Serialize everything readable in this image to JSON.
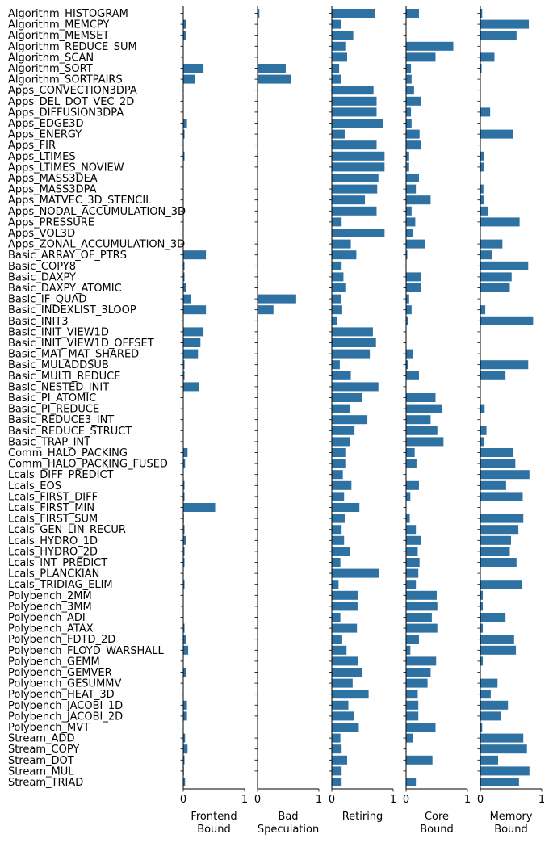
{
  "chart_data": {
    "type": "bar",
    "orientation": "horizontal",
    "categories": [
      "Algorithm_HISTOGRAM",
      "Algorithm_MEMCPY",
      "Algorithm_MEMSET",
      "Algorithm_REDUCE_SUM",
      "Algorithm_SCAN",
      "Algorithm_SORT",
      "Algorithm_SORTPAIRS",
      "Apps_CONVECTION3DPA",
      "Apps_DEL_DOT_VEC_2D",
      "Apps_DIFFUSION3DPA",
      "Apps_EDGE3D",
      "Apps_ENERGY",
      "Apps_FIR",
      "Apps_LTIMES",
      "Apps_LTIMES_NOVIEW",
      "Apps_MASS3DEA",
      "Apps_MASS3DPA",
      "Apps_MATVEC_3D_STENCIL",
      "Apps_NODAL_ACCUMULATION_3D",
      "Apps_PRESSURE",
      "Apps_VOL3D",
      "Apps_ZONAL_ACCUMULATION_3D",
      "Basic_ARRAY_OF_PTRS",
      "Basic_COPY8",
      "Basic_DAXPY",
      "Basic_DAXPY_ATOMIC",
      "Basic_IF_QUAD",
      "Basic_INDEXLIST_3LOOP",
      "Basic_INIT3",
      "Basic_INIT_VIEW1D",
      "Basic_INIT_VIEW1D_OFFSET",
      "Basic_MAT_MAT_SHARED",
      "Basic_MULADDSUB",
      "Basic_MULTI_REDUCE",
      "Basic_NESTED_INIT",
      "Basic_PI_ATOMIC",
      "Basic_PI_REDUCE",
      "Basic_REDUCE3_INT",
      "Basic_REDUCE_STRUCT",
      "Basic_TRAP_INT",
      "Comm_HALO_PACKING",
      "Comm_HALO_PACKING_FUSED",
      "Lcals_DIFF_PREDICT",
      "Lcals_EOS",
      "Lcals_FIRST_DIFF",
      "Lcals_FIRST_MIN",
      "Lcals_FIRST_SUM",
      "Lcals_GEN_LIN_RECUR",
      "Lcals_HYDRO_1D",
      "Lcals_HYDRO_2D",
      "Lcals_INT_PREDICT",
      "Lcals_PLANCKIAN",
      "Lcals_TRIDIAG_ELIM",
      "Polybench_2MM",
      "Polybench_3MM",
      "Polybench_ADI",
      "Polybench_ATAX",
      "Polybench_FDTD_2D",
      "Polybench_FLOYD_WARSHALL",
      "Polybench_GEMM",
      "Polybench_GEMVER",
      "Polybench_GESUMMV",
      "Polybench_HEAT_3D",
      "Polybench_JACOBI_1D",
      "Polybench_JACOBI_2D",
      "Polybench_MVT",
      "Stream_ADD",
      "Stream_COPY",
      "Stream_DOT",
      "Stream_MUL",
      "Stream_TRIAD"
    ],
    "xlim": [
      0,
      1
    ],
    "xticks": [
      "0",
      "1"
    ],
    "color": "#2e71a3",
    "panels": [
      {
        "label": "Frontend\nBound",
        "values": [
          0,
          0.05,
          0.05,
          0,
          0,
          0.33,
          0.19,
          0,
          0,
          0,
          0.06,
          0.02,
          0,
          0.02,
          0,
          0,
          0,
          0,
          0,
          0,
          0,
          0,
          0.37,
          0.02,
          0.02,
          0.04,
          0.13,
          0.37,
          0,
          0.33,
          0.28,
          0.24,
          0.02,
          0.02,
          0.25,
          0,
          0,
          0,
          0,
          0,
          0.07,
          0.03,
          0,
          0.02,
          0.02,
          0.52,
          0.01,
          0.02,
          0.04,
          0.02,
          0.02,
          0,
          0.02,
          0,
          0,
          0,
          0.02,
          0.04,
          0.08,
          0,
          0.05,
          0,
          0,
          0.06,
          0.06,
          0,
          0.03,
          0.07,
          0.02,
          0.01,
          0.03
        ]
      },
      {
        "label": "Bad\nSpeculation",
        "values": [
          0.03,
          0,
          0,
          0,
          0,
          0.46,
          0.55,
          0,
          0,
          0,
          0,
          0,
          0,
          0,
          0,
          0,
          0,
          0,
          0,
          0,
          0,
          0,
          0,
          0,
          0,
          0,
          0.63,
          0.26,
          0,
          0,
          0,
          0,
          0,
          0,
          0,
          0,
          0,
          0,
          0,
          0,
          0,
          0,
          0,
          0,
          0,
          0,
          0,
          0,
          0,
          0,
          0,
          0,
          0,
          0,
          0,
          0,
          0,
          0,
          0,
          0,
          0,
          0,
          0,
          0,
          0,
          0,
          0,
          0,
          0,
          0,
          0
        ]
      },
      {
        "label": "Retiring",
        "values": [
          0.71,
          0.15,
          0.35,
          0.22,
          0.25,
          0.12,
          0.15,
          0.68,
          0.73,
          0.73,
          0.83,
          0.21,
          0.73,
          0.86,
          0.86,
          0.76,
          0.74,
          0.54,
          0.73,
          0.16,
          0.86,
          0.31,
          0.4,
          0.16,
          0.19,
          0.22,
          0.15,
          0.17,
          0.09,
          0.67,
          0.72,
          0.62,
          0.13,
          0.31,
          0.76,
          0.49,
          0.29,
          0.58,
          0.37,
          0.29,
          0.22,
          0.22,
          0.18,
          0.32,
          0.2,
          0.45,
          0.21,
          0.16,
          0.2,
          0.29,
          0.14,
          0.77,
          0.11,
          0.43,
          0.42,
          0.14,
          0.41,
          0.17,
          0.24,
          0.43,
          0.49,
          0.34,
          0.6,
          0.27,
          0.36,
          0.44,
          0.14,
          0.16,
          0.25,
          0.16,
          0.16
        ]
      },
      {
        "label": "Core\nBound",
        "values": [
          0.21,
          0,
          0,
          0.77,
          0.48,
          0.08,
          0.09,
          0.13,
          0.24,
          0.08,
          0.09,
          0.22,
          0.24,
          0.05,
          0.05,
          0.21,
          0.16,
          0.4,
          0.09,
          0.15,
          0.11,
          0.31,
          0.02,
          0,
          0.25,
          0.25,
          0.05,
          0.09,
          0.03,
          0,
          0,
          0.11,
          0.04,
          0.21,
          0,
          0.48,
          0.59,
          0.4,
          0.51,
          0.61,
          0.14,
          0.17,
          0,
          0.21,
          0.07,
          0,
          0.06,
          0.16,
          0.24,
          0.19,
          0.22,
          0.2,
          0.16,
          0.5,
          0.51,
          0.42,
          0.51,
          0.21,
          0.07,
          0.49,
          0.4,
          0.35,
          0.19,
          0.2,
          0.2,
          0.48,
          0.11,
          0,
          0.43,
          0,
          0.16
        ]
      },
      {
        "label": "Memory\nBound",
        "values": [
          0.03,
          0.79,
          0.59,
          0,
          0.23,
          0.02,
          0,
          0,
          0,
          0.16,
          0,
          0.54,
          0,
          0.06,
          0.06,
          0,
          0.05,
          0.06,
          0.13,
          0.64,
          0,
          0.36,
          0.19,
          0.78,
          0.51,
          0.48,
          0,
          0.08,
          0.86,
          0,
          0,
          0,
          0.78,
          0.41,
          0,
          0,
          0.07,
          0,
          0.1,
          0.06,
          0.54,
          0.57,
          0.8,
          0.42,
          0.69,
          0,
          0.7,
          0.62,
          0.5,
          0.48,
          0.59,
          0,
          0.68,
          0.04,
          0.04,
          0.41,
          0.04,
          0.55,
          0.58,
          0.04,
          0,
          0.28,
          0.17,
          0.45,
          0.34,
          0.03,
          0.7,
          0.76,
          0.29,
          0.8,
          0.63
        ]
      }
    ]
  }
}
